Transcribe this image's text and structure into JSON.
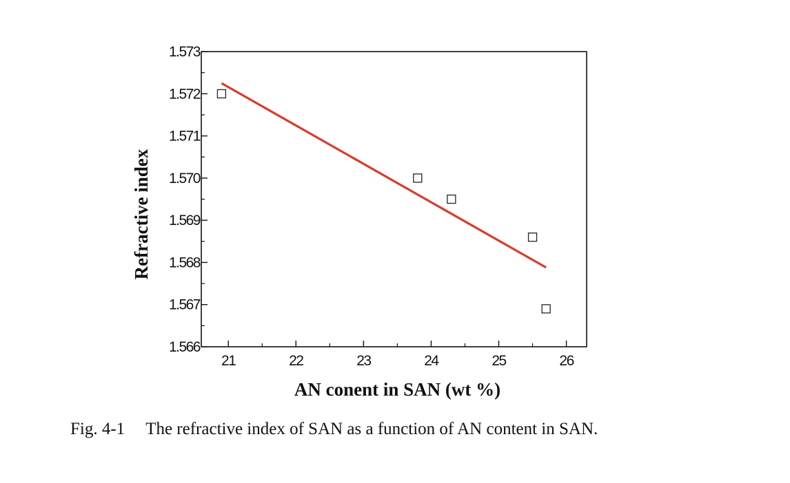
{
  "caption": {
    "number": "Fig. 4-1",
    "text": "The refractive index of SAN as a function of AN content in SAN."
  },
  "chart_data": {
    "type": "scatter",
    "title": "",
    "xlabel": "AN conent in SAN (wt %)",
    "ylabel": "Refractive index",
    "xlim": [
      20.6,
      26.3
    ],
    "ylim": [
      1.566,
      1.573
    ],
    "x_ticks": [
      21,
      22,
      23,
      24,
      25,
      26
    ],
    "x_tick_labels": [
      "21",
      "22",
      "23",
      "24",
      "25",
      "26"
    ],
    "y_ticks": [
      1.566,
      1.567,
      1.568,
      1.569,
      1.57,
      1.571,
      1.572,
      1.573
    ],
    "y_tick_labels": [
      "1.566",
      "1.567",
      "1.568",
      "1.569",
      "1.570",
      "1.571",
      "1.572",
      "1.573"
    ],
    "grid": false,
    "series": [
      {
        "marker": "open-square",
        "color": "#222222",
        "points": [
          {
            "x": 20.9,
            "y": 1.572
          },
          {
            "x": 23.8,
            "y": 1.57
          },
          {
            "x": 24.3,
            "y": 1.5695
          },
          {
            "x": 25.5,
            "y": 1.5686
          },
          {
            "x": 25.7,
            "y": 1.5669
          }
        ]
      }
    ],
    "fit_line": {
      "color": "#d93a2b",
      "points": [
        {
          "x": 20.9,
          "y": 1.57225
        },
        {
          "x": 25.7,
          "y": 1.56788
        }
      ]
    }
  }
}
